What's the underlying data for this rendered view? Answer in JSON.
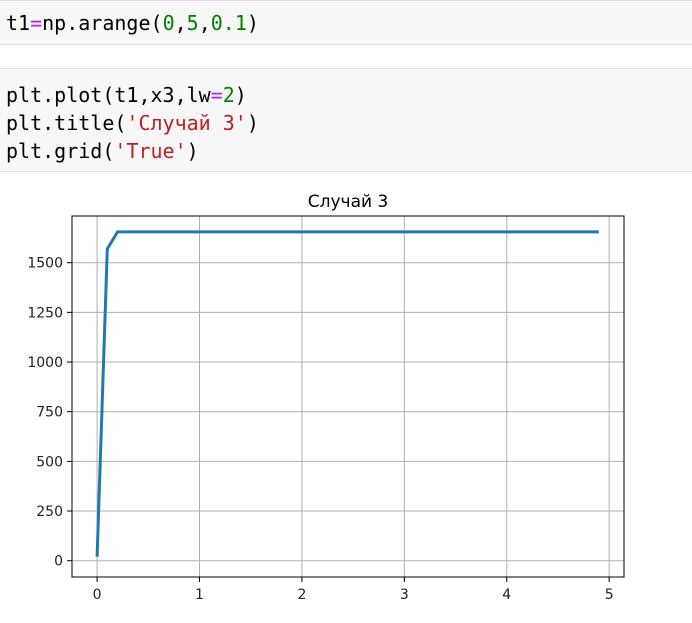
{
  "cells": [
    {
      "tokens": [
        {
          "t": "t1",
          "c": ""
        },
        {
          "t": "=",
          "c": "op"
        },
        {
          "t": "np.arange(",
          "c": ""
        },
        {
          "t": "0",
          "c": "num"
        },
        {
          "t": ",",
          "c": ""
        },
        {
          "t": "5",
          "c": "num"
        },
        {
          "t": ",",
          "c": ""
        },
        {
          "t": "0.1",
          "c": "num"
        },
        {
          "t": ")",
          "c": ""
        }
      ]
    },
    {
      "lines": [
        [
          {
            "t": "plt.plot(t1,x3,lw",
            "c": ""
          },
          {
            "t": "=",
            "c": "op"
          },
          {
            "t": "2",
            "c": "num"
          },
          {
            "t": ")",
            "c": ""
          }
        ],
        [
          {
            "t": "plt.title(",
            "c": ""
          },
          {
            "t": "'Случай 3'",
            "c": "str"
          },
          {
            "t": ")",
            "c": ""
          }
        ],
        [
          {
            "t": "plt.grid(",
            "c": ""
          },
          {
            "t": "'True'",
            "c": "str"
          },
          {
            "t": ")",
            "c": ""
          }
        ]
      ]
    }
  ],
  "chart_data": {
    "type": "line",
    "title": "Случай 3",
    "xlabel": "",
    "ylabel": "",
    "xlim": [
      -0.245,
      5.145
    ],
    "ylim": [
      -82,
      1735
    ],
    "xticks": [
      0,
      1,
      2,
      3,
      4,
      5
    ],
    "yticks": [
      0,
      250,
      500,
      750,
      1000,
      1250,
      1500
    ],
    "grid": true,
    "series": [
      {
        "color": "#1f77b4",
        "x": [
          0,
          0.1,
          0.2,
          4.9
        ],
        "y": [
          20,
          1570,
          1655,
          1655
        ]
      }
    ]
  }
}
